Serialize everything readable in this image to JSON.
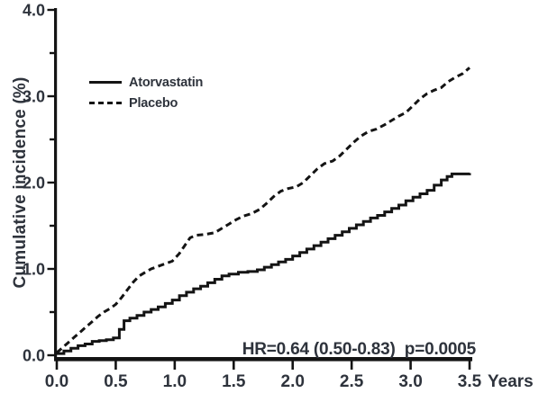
{
  "figure": {
    "background": "#ffffff",
    "line_color": "#141414",
    "text_color": "#2e333c"
  },
  "chart_data": {
    "type": "line",
    "subtype": "kaplan-meier-cumulative-incidence",
    "title": "",
    "xlabel": "",
    "xunit": "Years",
    "ylabel": "Cumulative incidence (%)",
    "annotation": "HR=0.64 (0.50-0.83)  p=0.0005",
    "xlim": [
      0,
      3.5
    ],
    "ylim": [
      0,
      4.0
    ],
    "x_ticks": [
      0.0,
      0.5,
      1.0,
      1.5,
      2.0,
      2.5,
      3.0,
      3.5
    ],
    "y_ticks_major": [
      0.0,
      1.0,
      2.0,
      3.0,
      4.0
    ],
    "y_ticks_minor": [
      0.5,
      1.5,
      2.5,
      3.5
    ],
    "grid": false,
    "legend_position": "upper-left-inside",
    "series": [
      {
        "name": "Atorvastatin",
        "line_style": "solid",
        "interpolation": "step-after",
        "color": "#141414",
        "points": [
          [
            0.0,
            0.02
          ],
          [
            0.06,
            0.05
          ],
          [
            0.12,
            0.08
          ],
          [
            0.18,
            0.11
          ],
          [
            0.24,
            0.13
          ],
          [
            0.3,
            0.16
          ],
          [
            0.36,
            0.17
          ],
          [
            0.42,
            0.18
          ],
          [
            0.48,
            0.2
          ],
          [
            0.53,
            0.3
          ],
          [
            0.57,
            0.4
          ],
          [
            0.62,
            0.43
          ],
          [
            0.68,
            0.46
          ],
          [
            0.74,
            0.5
          ],
          [
            0.8,
            0.53
          ],
          [
            0.86,
            0.56
          ],
          [
            0.92,
            0.6
          ],
          [
            0.98,
            0.64
          ],
          [
            1.04,
            0.69
          ],
          [
            1.1,
            0.73
          ],
          [
            1.16,
            0.77
          ],
          [
            1.22,
            0.8
          ],
          [
            1.28,
            0.84
          ],
          [
            1.34,
            0.88
          ],
          [
            1.4,
            0.92
          ],
          [
            1.46,
            0.94
          ],
          [
            1.54,
            0.96
          ],
          [
            1.62,
            0.97
          ],
          [
            1.7,
            0.99
          ],
          [
            1.76,
            1.02
          ],
          [
            1.82,
            1.05
          ],
          [
            1.88,
            1.08
          ],
          [
            1.94,
            1.11
          ],
          [
            2.0,
            1.15
          ],
          [
            2.06,
            1.19
          ],
          [
            2.12,
            1.23
          ],
          [
            2.18,
            1.27
          ],
          [
            2.24,
            1.31
          ],
          [
            2.3,
            1.35
          ],
          [
            2.36,
            1.39
          ],
          [
            2.42,
            1.43
          ],
          [
            2.48,
            1.47
          ],
          [
            2.54,
            1.51
          ],
          [
            2.6,
            1.55
          ],
          [
            2.66,
            1.59
          ],
          [
            2.72,
            1.62
          ],
          [
            2.78,
            1.66
          ],
          [
            2.84,
            1.7
          ],
          [
            2.9,
            1.74
          ],
          [
            2.96,
            1.79
          ],
          [
            3.02,
            1.83
          ],
          [
            3.08,
            1.87
          ],
          [
            3.14,
            1.91
          ],
          [
            3.2,
            1.97
          ],
          [
            3.26,
            2.03
          ],
          [
            3.31,
            2.07
          ],
          [
            3.35,
            2.1
          ],
          [
            3.5,
            2.11
          ]
        ]
      },
      {
        "name": "Placebo",
        "line_style": "dashed",
        "interpolation": "linear",
        "color": "#141414",
        "points": [
          [
            0.0,
            0.03
          ],
          [
            0.05,
            0.09
          ],
          [
            0.1,
            0.15
          ],
          [
            0.15,
            0.21
          ],
          [
            0.2,
            0.27
          ],
          [
            0.25,
            0.33
          ],
          [
            0.3,
            0.39
          ],
          [
            0.35,
            0.45
          ],
          [
            0.4,
            0.5
          ],
          [
            0.45,
            0.54
          ],
          [
            0.5,
            0.59
          ],
          [
            0.55,
            0.67
          ],
          [
            0.6,
            0.76
          ],
          [
            0.65,
            0.85
          ],
          [
            0.7,
            0.92
          ],
          [
            0.75,
            0.96
          ],
          [
            0.8,
            1.0
          ],
          [
            0.86,
            1.03
          ],
          [
            0.92,
            1.06
          ],
          [
            0.98,
            1.09
          ],
          [
            1.04,
            1.18
          ],
          [
            1.09,
            1.28
          ],
          [
            1.13,
            1.36
          ],
          [
            1.18,
            1.39
          ],
          [
            1.26,
            1.4
          ],
          [
            1.34,
            1.42
          ],
          [
            1.4,
            1.47
          ],
          [
            1.46,
            1.52
          ],
          [
            1.52,
            1.57
          ],
          [
            1.58,
            1.61
          ],
          [
            1.65,
            1.64
          ],
          [
            1.72,
            1.69
          ],
          [
            1.78,
            1.76
          ],
          [
            1.84,
            1.84
          ],
          [
            1.9,
            1.9
          ],
          [
            1.96,
            1.93
          ],
          [
            2.03,
            1.95
          ],
          [
            2.09,
            2.0
          ],
          [
            2.15,
            2.08
          ],
          [
            2.21,
            2.16
          ],
          [
            2.27,
            2.22
          ],
          [
            2.34,
            2.25
          ],
          [
            2.4,
            2.31
          ],
          [
            2.46,
            2.39
          ],
          [
            2.52,
            2.47
          ],
          [
            2.58,
            2.54
          ],
          [
            2.64,
            2.59
          ],
          [
            2.71,
            2.62
          ],
          [
            2.78,
            2.67
          ],
          [
            2.84,
            2.72
          ],
          [
            2.9,
            2.77
          ],
          [
            2.96,
            2.81
          ],
          [
            3.02,
            2.89
          ],
          [
            3.08,
            2.97
          ],
          [
            3.14,
            3.03
          ],
          [
            3.2,
            3.07
          ],
          [
            3.26,
            3.1
          ],
          [
            3.32,
            3.17
          ],
          [
            3.38,
            3.22
          ],
          [
            3.44,
            3.26
          ],
          [
            3.5,
            3.33
          ]
        ]
      }
    ]
  }
}
